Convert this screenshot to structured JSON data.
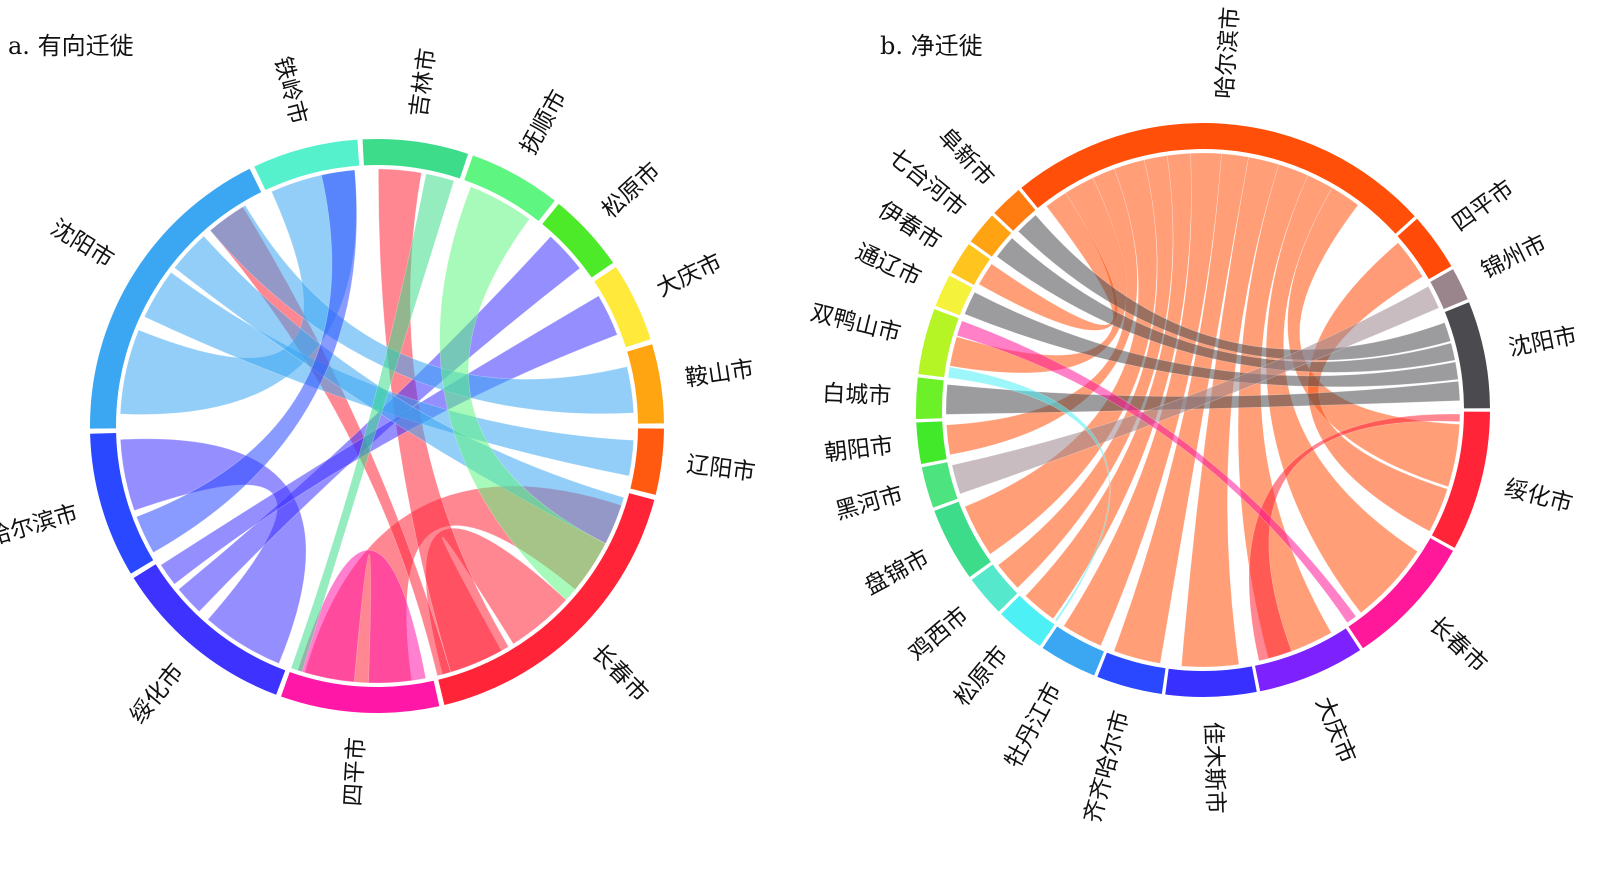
{
  "panels": [
    {
      "id": "a",
      "title": "a. 有向迁徙",
      "segments": [
        {
          "name": "辽阳市",
          "color": "#ff5a0f",
          "weight": 5
        },
        {
          "name": "长春市",
          "color": "#ff2438",
          "weight": 23
        },
        {
          "name": "四平市",
          "color": "#ff18a8",
          "weight": 12
        },
        {
          "name": "绥化市",
          "color": "#3e32ff",
          "weight": 14
        },
        {
          "name": "哈尔滨市",
          "color": "#2a48ff",
          "weight": 11
        },
        {
          "name": "沈阳市",
          "color": "#3ba6f2",
          "weight": 24
        },
        {
          "name": "铁岭市",
          "color": "#55f0cc",
          "weight": 8
        },
        {
          "name": "吉林市",
          "color": "#3ddc8a",
          "weight": 8
        },
        {
          "name": "抚顺市",
          "color": "#5ef580",
          "weight": 7
        },
        {
          "name": "松原市",
          "color": "#4dea2a",
          "weight": 6
        },
        {
          "name": "大庆市",
          "color": "#ffe93a",
          "weight": 6
        },
        {
          "name": "鞍山市",
          "color": "#ffa512",
          "weight": 6
        }
      ],
      "chords": [
        {
          "from": 1,
          "to": 2,
          "a": [
            0.05,
            0.4
          ],
          "b": [
            0.15,
            0.9
          ]
        },
        {
          "from": 1,
          "to": 1,
          "a": [
            0.45,
            0.7
          ],
          "b": [
            0.75,
            0.98
          ]
        },
        {
          "from": 1,
          "to": 7,
          "a": [
            0.72,
            0.95
          ],
          "b": [
            0.15,
            0.6
          ]
        },
        {
          "from": 1,
          "to": 5,
          "a": [
            0.95,
            1.0
          ],
          "b": [
            0.78,
            0.92
          ]
        },
        {
          "from": 2,
          "to": 2,
          "a": [
            0.05,
            0.45
          ],
          "b": [
            0.55,
            0.95
          ]
        },
        {
          "from": 3,
          "to": 4,
          "a": [
            0.05,
            0.55
          ],
          "b": [
            0.4,
            0.95
          ]
        },
        {
          "from": 3,
          "to": 9,
          "a": [
            0.62,
            0.8
          ],
          "b": [
            0.2,
            0.8
          ]
        },
        {
          "from": 3,
          "to": 10,
          "a": [
            0.84,
            0.98
          ],
          "b": [
            0.2,
            0.8
          ]
        },
        {
          "from": 5,
          "to": 6,
          "a": [
            0.05,
            0.35
          ],
          "b": [
            0.05,
            0.95
          ]
        },
        {
          "from": 5,
          "to": 0,
          "a": [
            0.4,
            0.58
          ],
          "b": [
            0.2,
            0.8
          ]
        },
        {
          "from": 5,
          "to": 1,
          "a": [
            0.6,
            0.75
          ],
          "b": [
            0.02,
            0.2
          ]
        },
        {
          "from": 5,
          "to": 11,
          "a": [
            0.78,
            0.93
          ],
          "b": [
            0.2,
            0.85
          ]
        },
        {
          "from": 7,
          "to": 2,
          "a": [
            0.65,
            0.95
          ],
          "b": [
            0.92,
            1.0
          ]
        },
        {
          "from": 8,
          "to": 1,
          "a": [
            0.1,
            0.9
          ],
          "b": [
            0.2,
            0.45
          ]
        },
        {
          "from": 4,
          "to": 6,
          "a": [
            0.05,
            0.35
          ],
          "b": [
            0.6,
            0.95
          ]
        }
      ]
    },
    {
      "id": "b",
      "title": "b. 净迁徙",
      "segments": [
        {
          "name": "绥化市",
          "color": "#ff2438",
          "weight": 17
        },
        {
          "name": "长春市",
          "color": "#ff1899",
          "weight": 16
        },
        {
          "name": "大庆市",
          "color": "#7d21ff",
          "weight": 13
        },
        {
          "name": "佳木斯市",
          "color": "#3730ff",
          "weight": 11
        },
        {
          "name": "齐齐哈尔市",
          "color": "#2a48ff",
          "weight": 8
        },
        {
          "name": "牡丹江市",
          "color": "#3ba6f2",
          "weight": 7
        },
        {
          "name": "松原市",
          "color": "#4cf0f5",
          "weight": 6
        },
        {
          "name": "鸡西市",
          "color": "#55e8cc",
          "weight": 5
        },
        {
          "name": "盘锦市",
          "color": "#3ddc8a",
          "weight": 9
        },
        {
          "name": "黑河市",
          "color": "#4de37f",
          "weight": 5
        },
        {
          "name": "朝阳市",
          "color": "#42e82a",
          "weight": 5
        },
        {
          "name": "白城市",
          "color": "#6cf028",
          "weight": 5
        },
        {
          "name": "双鸭山市",
          "color": "#b5f525",
          "weight": 8
        },
        {
          "name": "通辽市",
          "color": "#f4f23a",
          "weight": 4
        },
        {
          "name": "伊春市",
          "color": "#ffc41e",
          "weight": 4
        },
        {
          "name": "七台河市",
          "color": "#ffa312",
          "weight": 4
        },
        {
          "name": "阜新市",
          "color": "#ff7c12",
          "weight": 4
        },
        {
          "name": "哈尔滨市",
          "color": "#ff4f08",
          "weight": 52
        },
        {
          "name": "四平市",
          "color": "#ff4a08",
          "weight": 7
        },
        {
          "name": "锦州市",
          "color": "#9b858c",
          "weight": 4
        },
        {
          "name": "沈阳市",
          "color": "#4a4a4f",
          "weight": 13
        }
      ],
      "chords": [
        {
          "from": 17,
          "to": 0,
          "a": [
            0.8,
            0.88
          ],
          "b": [
            0.1,
            0.6
          ]
        },
        {
          "from": 17,
          "to": 1,
          "a": [
            0.73,
            0.8
          ],
          "b": [
            0.15,
            0.85
          ]
        },
        {
          "from": 17,
          "to": 2,
          "a": [
            0.65,
            0.73
          ],
          "b": [
            0.15,
            0.85
          ]
        },
        {
          "from": 17,
          "to": 3,
          "a": [
            0.57,
            0.65
          ],
          "b": [
            0.15,
            0.85
          ]
        },
        {
          "from": 17,
          "to": 4,
          "a": [
            0.5,
            0.57
          ],
          "b": [
            0.1,
            0.9
          ]
        },
        {
          "from": 17,
          "to": 5,
          "a": [
            0.42,
            0.5
          ],
          "b": [
            0.1,
            0.9
          ]
        },
        {
          "from": 17,
          "to": 6,
          "a": [
            0.36,
            0.42
          ],
          "b": [
            0.1,
            0.9
          ]
        },
        {
          "from": 17,
          "to": 7,
          "a": [
            0.3,
            0.36
          ],
          "b": [
            0.1,
            0.9
          ]
        },
        {
          "from": 17,
          "to": 8,
          "a": [
            0.22,
            0.3
          ],
          "b": [
            0.1,
            0.9
          ]
        },
        {
          "from": 17,
          "to": 10,
          "a": [
            0.16,
            0.22
          ],
          "b": [
            0.1,
            0.9
          ]
        },
        {
          "from": 17,
          "to": 12,
          "a": [
            0.08,
            0.16
          ],
          "b": [
            0.2,
            0.7
          ]
        },
        {
          "from": 17,
          "to": 14,
          "a": [
            0.02,
            0.08
          ],
          "b": [
            0.1,
            0.9
          ]
        },
        {
          "from": 18,
          "to": 0,
          "a": [
            0.1,
            0.9
          ],
          "b": [
            0.62,
            0.98
          ]
        },
        {
          "from": 20,
          "to": 16,
          "a": [
            0.1,
            0.3
          ],
          "b": [
            0.1,
            0.9
          ]
        },
        {
          "from": 20,
          "to": 15,
          "a": [
            0.32,
            0.5
          ],
          "b": [
            0.1,
            0.9
          ]
        },
        {
          "from": 20,
          "to": 13,
          "a": [
            0.52,
            0.7
          ],
          "b": [
            0.1,
            0.9
          ]
        },
        {
          "from": 20,
          "to": 11,
          "a": [
            0.72,
            0.92
          ],
          "b": [
            0.1,
            0.9
          ]
        },
        {
          "from": 19,
          "to": 9,
          "a": [
            0.1,
            0.9
          ],
          "b": [
            0.1,
            0.9
          ]
        },
        {
          "from": 0,
          "to": 2,
          "a": [
            0.02,
            0.08
          ],
          "b": [
            0.6,
            0.95
          ]
        },
        {
          "from": 1,
          "to": 12,
          "a": [
            0.9,
            0.99
          ],
          "b": [
            0.72,
            0.98
          ]
        },
        {
          "from": 6,
          "to": 12,
          "a": [
            0.0,
            0.05
          ],
          "b": [
            0.0,
            0.18
          ]
        }
      ]
    }
  ]
}
